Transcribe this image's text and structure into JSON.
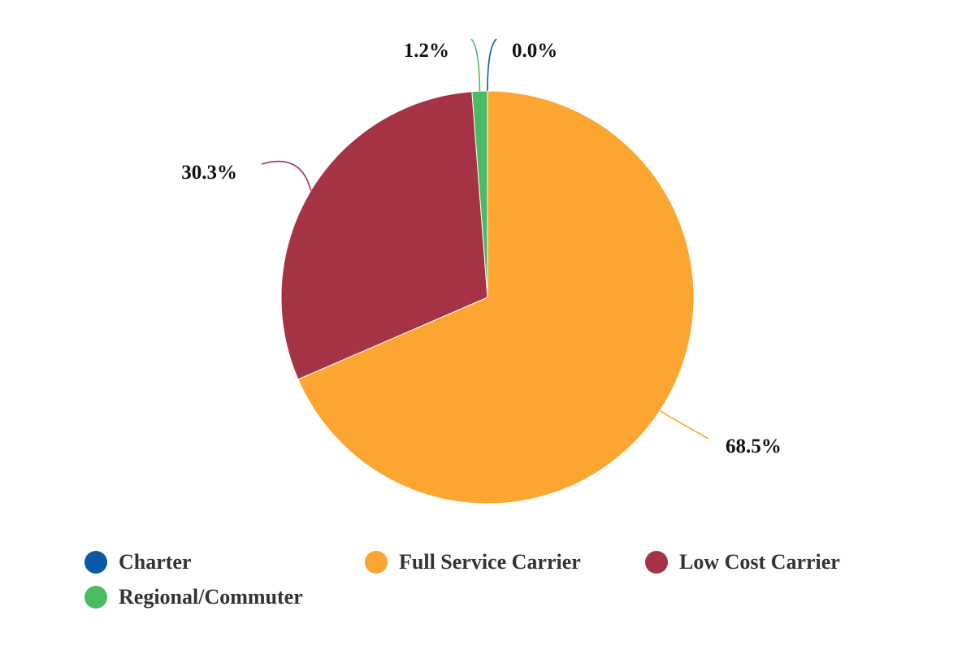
{
  "chart_data": {
    "type": "pie",
    "title": "",
    "slices": [
      {
        "name": "Charter",
        "value": 0.0,
        "label": "0.0%",
        "color": "#0a5aa8"
      },
      {
        "name": "Full Service Carrier",
        "value": 68.5,
        "label": "68.5%",
        "color": "#fca631"
      },
      {
        "name": "Low Cost Carrier",
        "value": 30.3,
        "label": "30.3%",
        "color": "#a63246"
      },
      {
        "name": "Regional/Commuter",
        "value": 1.2,
        "label": "1.2%",
        "color": "#4bba63"
      }
    ],
    "legend_position": "bottom",
    "label_style": "outside-with-leader-lines"
  }
}
